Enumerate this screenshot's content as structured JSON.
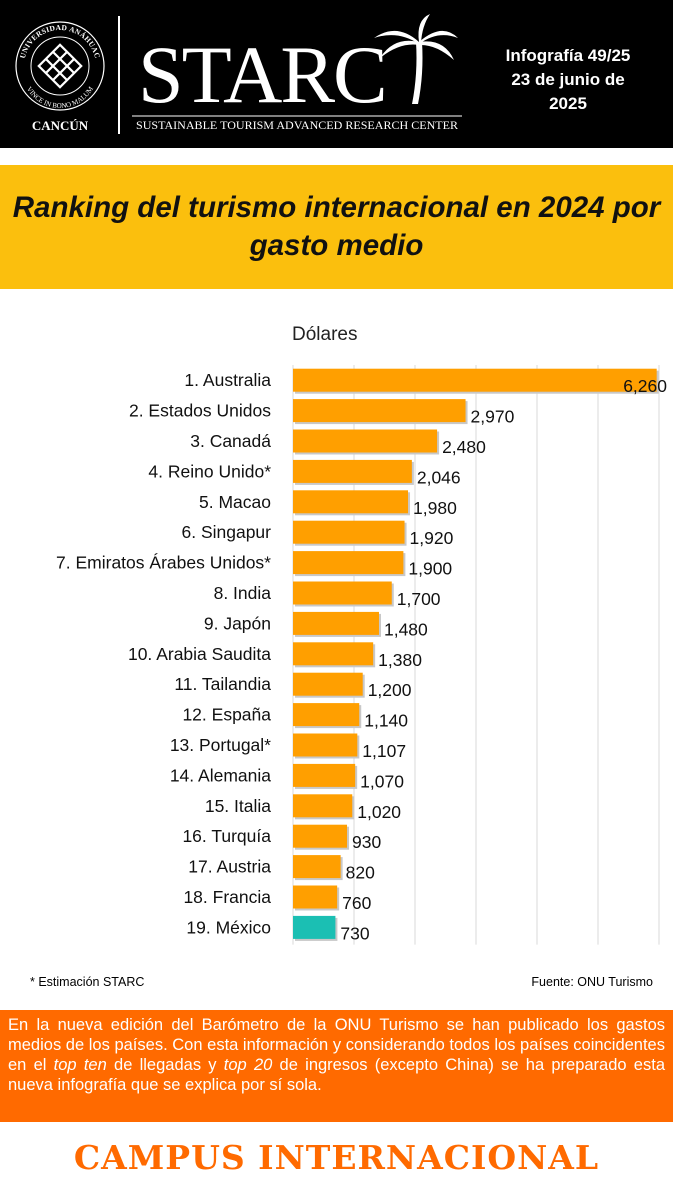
{
  "header": {
    "university_top": "UNIVERSIDAD ANÁHUAC",
    "university_motto": "VINCE IN BONO MALUM",
    "campus_city": "CANCÚN",
    "logo_word": "STARC",
    "logo_subtitle": "SUSTAINABLE TOURISM ADVANCED RESEARCH CENTER",
    "info_line1": "Infografía 49/25",
    "info_line2": "23 de junio de",
    "info_line3": "2025"
  },
  "title": "Ranking del turismo internacional en 2024 por gasto medio",
  "chart_data": {
    "type": "bar",
    "orientation": "horizontal",
    "unit_label": "Dólares",
    "categories": [
      "1. Australia",
      "2. Estados Unidos",
      "3. Canadá",
      "4. Reino Unido*",
      "5. Macao",
      "6. Singapur",
      "7. Emiratos Árabes Unidos*",
      "8. India",
      "9. Japón",
      "10. Arabia Saudita",
      "11. Tailandia",
      "12. España",
      "13. Portugal*",
      "14. Alemania",
      "15. Italia",
      "16. Turquía",
      "17. Austria",
      "18. Francia",
      "19. México"
    ],
    "values": [
      6260,
      2970,
      2480,
      2046,
      1980,
      1920,
      1900,
      1700,
      1480,
      1380,
      1200,
      1140,
      1107,
      1070,
      1020,
      930,
      820,
      760,
      730
    ],
    "value_labels": [
      "6,260",
      "2,970",
      "2,480",
      "2,046",
      "1,980",
      "1,920",
      "1,900",
      "1,700",
      "1,480",
      "1,380",
      "1,200",
      "1,140",
      "1,107",
      "1,070",
      "1,020",
      "930",
      "820",
      "760",
      "730"
    ],
    "xlim": [
      0,
      6300
    ],
    "grid": true,
    "colors": {
      "default": "#ff9f00",
      "highlight": "#1bbfb3",
      "grid": "#d9d9d9"
    },
    "highlight_index": 18
  },
  "footnote": "* Estimación STARC",
  "source": "Fuente: ONU Turismo",
  "description": {
    "part1": "En la nueva edición del Barómetro de la ONU Turismo se han publicado los gastos medios de los países. Con esta información y considerando todos los países coincidentes en el ",
    "em1": "top ten",
    "part2": " de llegadas y ",
    "em2": "top 20",
    "part3": " de ingresos (excepto China) se ha preparado esta nueva infografía que se explica por sí sola."
  },
  "footer": "CAMPUS INTERNACIONAL"
}
